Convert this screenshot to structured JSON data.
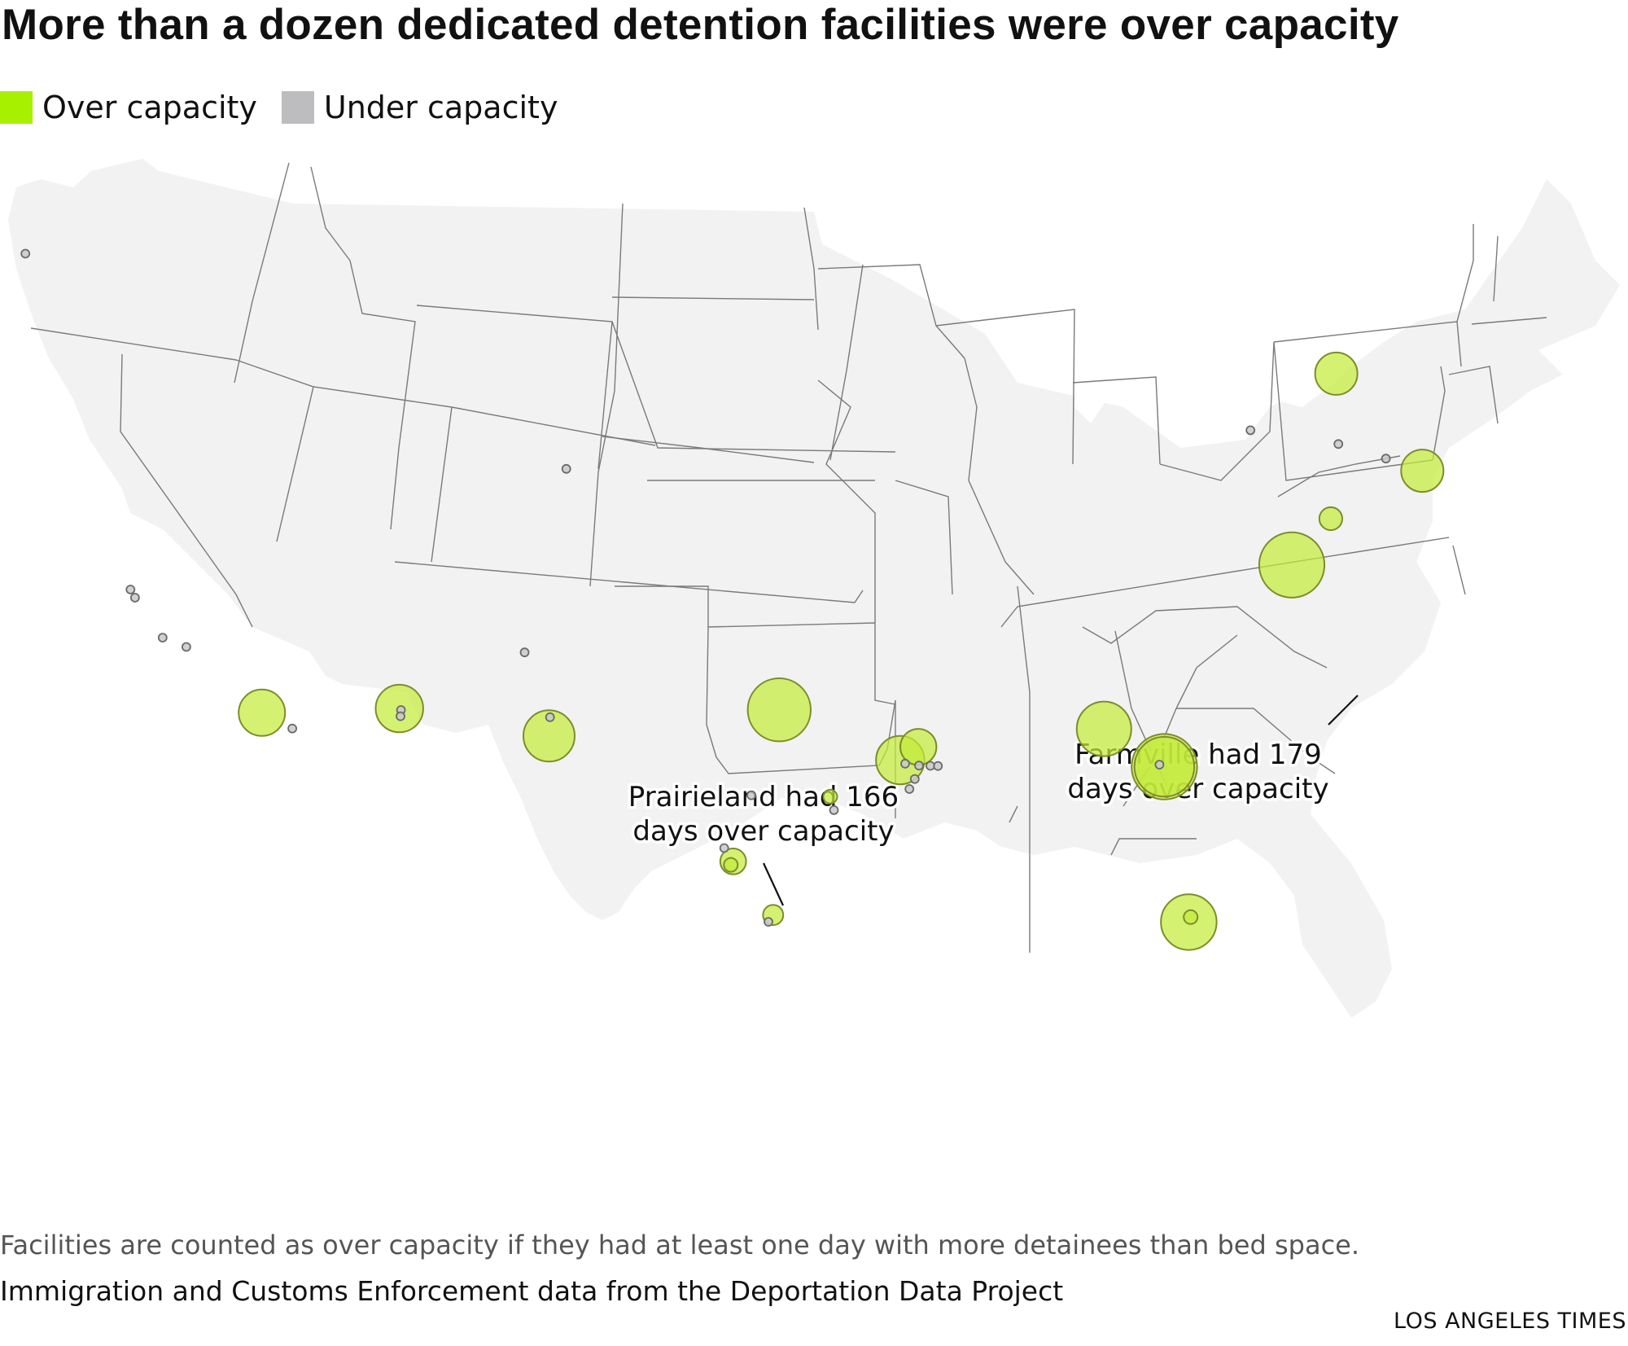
{
  "title": "More than a dozen dedicated detention facilities were over capacity",
  "legend": {
    "over": {
      "label": "Over capacity",
      "color": "#a6f000"
    },
    "under": {
      "label": "Under capacity",
      "color": "#bdbdbf"
    }
  },
  "annotations": {
    "prairieland": [
      "Prairieland had 166",
      "days over capacity"
    ],
    "farmville": [
      "Farmville had 179",
      "days over capacity"
    ]
  },
  "note": "Facilities are counted as over capacity if they had at least one day with more detainees than bed space.",
  "source": "Immigration and Customs Enforcement data from the Deportation Data Project",
  "credit": "LOS ANGELES TIMES",
  "colors": {
    "land": "#f2f2f2",
    "border": "#7a7a7a",
    "over_fill": "#c4ec3a",
    "over_stroke": "#7e8c2c",
    "under_fill": "#c9c9c9",
    "under_stroke": "#6a6a6a"
  },
  "facilities": [
    {
      "status": "over",
      "days": 179,
      "lon": -78.4,
      "lat": 37.3
    },
    {
      "status": "over",
      "days": 166,
      "lon": -97.35,
      "lat": 32.42
    },
    {
      "status": "over",
      "days": 180,
      "lon": -82.2,
      "lat": 31.1
    },
    {
      "status": "over",
      "days": 150,
      "lon": -82.2,
      "lat": 31.1
    },
    {
      "status": "over",
      "days": 125,
      "lon": -84.7,
      "lat": 32.1
    },
    {
      "status": "over",
      "days": 130,
      "lon": -80.45,
      "lat": 26.6
    },
    {
      "status": "over",
      "days": 110,
      "lon": -106.35,
      "lat": 31.85
    },
    {
      "status": "over",
      "days": 95,
      "lon": -112.0,
      "lat": 32.95
    },
    {
      "status": "over",
      "days": 90,
      "lon": -117.25,
      "lat": 33.2
    },
    {
      "status": "over",
      "days": 98,
      "lon": -92.6,
      "lat": 30.95
    },
    {
      "status": "over",
      "days": 55,
      "lon": -91.9,
      "lat": 31.35
    },
    {
      "status": "over",
      "days": 75,
      "lon": -77.85,
      "lat": 43.0
    },
    {
      "status": "over",
      "days": 75,
      "lon": -74.3,
      "lat": 40.4
    },
    {
      "status": "over",
      "days": 22,
      "lon": -77.25,
      "lat": 38.75
    },
    {
      "status": "over",
      "days": 28,
      "lon": -99.3,
      "lat": 27.95
    },
    {
      "status": "over",
      "days": 17,
      "lon": -97.7,
      "lat": 26.35
    },
    {
      "status": "over",
      "days": 8,
      "lon": -99.4,
      "lat": 27.85
    },
    {
      "status": "over",
      "days": 8,
      "lon": -95.35,
      "lat": 29.85
    },
    {
      "status": "over",
      "days": 8,
      "lon": -80.4,
      "lat": 26.75
    },
    {
      "status": "under",
      "lon": -122.3,
      "lat": 47.25
    },
    {
      "status": "under",
      "lon": -104.9,
      "lat": 39.7
    },
    {
      "status": "under",
      "lon": -121.2,
      "lat": 37.2
    },
    {
      "status": "under",
      "lon": -121.1,
      "lat": 36.95
    },
    {
      "status": "under",
      "lon": -120.4,
      "lat": 35.7
    },
    {
      "status": "under",
      "lon": -119.6,
      "lat": 35.35
    },
    {
      "status": "under",
      "lon": -116.2,
      "lat": 32.65
    },
    {
      "status": "under",
      "lon": -111.95,
      "lat": 32.9
    },
    {
      "status": "under",
      "lon": -112.0,
      "lat": 32.72
    },
    {
      "status": "under",
      "lon": -106.25,
      "lat": 32.4
    },
    {
      "status": "under",
      "lon": -107.0,
      "lat": 34.35
    },
    {
      "status": "under",
      "lon": -82.4,
      "lat": 31.15
    },
    {
      "status": "under",
      "lon": -98.5,
      "lat": 29.9
    },
    {
      "status": "under",
      "lon": -95.2,
      "lat": 29.45
    },
    {
      "status": "under",
      "lon": -99.65,
      "lat": 28.35
    },
    {
      "status": "under",
      "lon": -97.9,
      "lat": 26.15
    },
    {
      "status": "under",
      "lon": -92.4,
      "lat": 30.85
    },
    {
      "status": "under",
      "lon": -91.85,
      "lat": 30.8
    },
    {
      "status": "under",
      "lon": -91.4,
      "lat": 30.8
    },
    {
      "status": "under",
      "lon": -91.1,
      "lat": 30.8
    },
    {
      "status": "under",
      "lon": -92.0,
      "lat": 30.4
    },
    {
      "status": "under",
      "lon": -92.2,
      "lat": 30.1
    },
    {
      "status": "under",
      "lon": -80.55,
      "lat": 41.15
    },
    {
      "status": "under",
      "lon": -77.4,
      "lat": 40.95
    },
    {
      "status": "under",
      "lon": -75.65,
      "lat": 40.65
    }
  ]
}
